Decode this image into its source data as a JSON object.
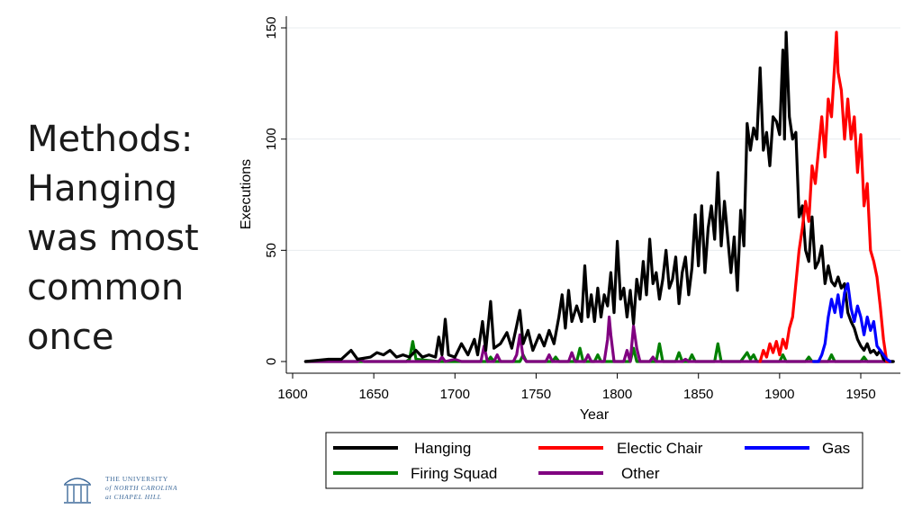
{
  "slide": {
    "title_lines": [
      "Methods:",
      "Hanging",
      "was most",
      "common",
      "once"
    ]
  },
  "logo": {
    "icon": "old-well-icon",
    "lines": [
      "THE UNIVERSITY",
      "of NORTH CAROLINA",
      "at CHAPEL HILL"
    ],
    "color": "#3e6a9a"
  },
  "chart_data": {
    "type": "line",
    "title": "",
    "xlabel": "Year",
    "ylabel": "Executions",
    "xlim": [
      1600,
      1975
    ],
    "ylim": [
      0,
      155
    ],
    "x_ticks": [
      1600,
      1650,
      1700,
      1750,
      1800,
      1850,
      1900,
      1950
    ],
    "y_ticks": [
      0,
      50,
      100,
      150
    ],
    "grid": true,
    "legend_position": "bottom",
    "series": [
      {
        "name": "Hanging",
        "color": "#000000",
        "points": [
          [
            1608,
            0
          ],
          [
            1622,
            1
          ],
          [
            1630,
            1
          ],
          [
            1636,
            5
          ],
          [
            1640,
            1
          ],
          [
            1648,
            2
          ],
          [
            1652,
            4
          ],
          [
            1656,
            3
          ],
          [
            1660,
            5
          ],
          [
            1664,
            2
          ],
          [
            1668,
            3
          ],
          [
            1672,
            2
          ],
          [
            1676,
            5
          ],
          [
            1680,
            2
          ],
          [
            1684,
            3
          ],
          [
            1688,
            2
          ],
          [
            1690,
            11
          ],
          [
            1692,
            3
          ],
          [
            1694,
            19
          ],
          [
            1696,
            3
          ],
          [
            1700,
            2
          ],
          [
            1704,
            8
          ],
          [
            1708,
            3
          ],
          [
            1712,
            10
          ],
          [
            1714,
            3
          ],
          [
            1717,
            18
          ],
          [
            1719,
            5
          ],
          [
            1722,
            27
          ],
          [
            1724,
            6
          ],
          [
            1728,
            8
          ],
          [
            1732,
            13
          ],
          [
            1735,
            6
          ],
          [
            1738,
            16
          ],
          [
            1740,
            23
          ],
          [
            1742,
            8
          ],
          [
            1745,
            14
          ],
          [
            1748,
            5
          ],
          [
            1752,
            12
          ],
          [
            1755,
            7
          ],
          [
            1758,
            14
          ],
          [
            1761,
            8
          ],
          [
            1764,
            20
          ],
          [
            1766,
            30
          ],
          [
            1768,
            15
          ],
          [
            1770,
            32
          ],
          [
            1772,
            18
          ],
          [
            1775,
            25
          ],
          [
            1778,
            18
          ],
          [
            1780,
            43
          ],
          [
            1782,
            20
          ],
          [
            1784,
            30
          ],
          [
            1786,
            18
          ],
          [
            1788,
            33
          ],
          [
            1790,
            20
          ],
          [
            1792,
            30
          ],
          [
            1794,
            25
          ],
          [
            1796,
            40
          ],
          [
            1798,
            22
          ],
          [
            1800,
            54
          ],
          [
            1802,
            28
          ],
          [
            1804,
            33
          ],
          [
            1806,
            20
          ],
          [
            1808,
            32
          ],
          [
            1810,
            17
          ],
          [
            1812,
            37
          ],
          [
            1814,
            28
          ],
          [
            1816,
            45
          ],
          [
            1818,
            30
          ],
          [
            1820,
            55
          ],
          [
            1822,
            35
          ],
          [
            1824,
            40
          ],
          [
            1826,
            28
          ],
          [
            1828,
            37
          ],
          [
            1830,
            50
          ],
          [
            1832,
            33
          ],
          [
            1834,
            37
          ],
          [
            1836,
            47
          ],
          [
            1838,
            26
          ],
          [
            1840,
            40
          ],
          [
            1842,
            47
          ],
          [
            1844,
            30
          ],
          [
            1846,
            42
          ],
          [
            1848,
            66
          ],
          [
            1850,
            43
          ],
          [
            1852,
            70
          ],
          [
            1854,
            40
          ],
          [
            1856,
            60
          ],
          [
            1858,
            70
          ],
          [
            1860,
            55
          ],
          [
            1862,
            85
          ],
          [
            1864,
            52
          ],
          [
            1866,
            72
          ],
          [
            1868,
            56
          ],
          [
            1870,
            40
          ],
          [
            1872,
            56
          ],
          [
            1874,
            32
          ],
          [
            1876,
            68
          ],
          [
            1878,
            52
          ],
          [
            1880,
            107
          ],
          [
            1882,
            95
          ],
          [
            1884,
            105
          ],
          [
            1886,
            100
          ],
          [
            1888,
            132
          ],
          [
            1890,
            95
          ],
          [
            1892,
            103
          ],
          [
            1894,
            88
          ],
          [
            1896,
            110
          ],
          [
            1898,
            108
          ],
          [
            1900,
            102
          ],
          [
            1902,
            140
          ],
          [
            1903,
            100
          ],
          [
            1904,
            148
          ],
          [
            1906,
            110
          ],
          [
            1908,
            100
          ],
          [
            1910,
            103
          ],
          [
            1912,
            65
          ],
          [
            1914,
            70
          ],
          [
            1916,
            50
          ],
          [
            1918,
            45
          ],
          [
            1920,
            65
          ],
          [
            1922,
            42
          ],
          [
            1924,
            45
          ],
          [
            1926,
            52
          ],
          [
            1928,
            35
          ],
          [
            1930,
            43
          ],
          [
            1932,
            36
          ],
          [
            1934,
            34
          ],
          [
            1936,
            38
          ],
          [
            1938,
            33
          ],
          [
            1940,
            35
          ],
          [
            1942,
            22
          ],
          [
            1944,
            18
          ],
          [
            1946,
            15
          ],
          [
            1948,
            10
          ],
          [
            1950,
            7
          ],
          [
            1952,
            5
          ],
          [
            1954,
            8
          ],
          [
            1956,
            4
          ],
          [
            1958,
            5
          ],
          [
            1960,
            3
          ],
          [
            1962,
            5
          ],
          [
            1964,
            1
          ],
          [
            1966,
            0
          ],
          [
            1970,
            0
          ]
        ]
      },
      {
        "name": "Electic Chair",
        "color": "#ff0000",
        "points": [
          [
            1888,
            0
          ],
          [
            1890,
            5
          ],
          [
            1892,
            2
          ],
          [
            1894,
            8
          ],
          [
            1896,
            4
          ],
          [
            1898,
            9
          ],
          [
            1900,
            3
          ],
          [
            1902,
            10
          ],
          [
            1904,
            6
          ],
          [
            1906,
            15
          ],
          [
            1908,
            20
          ],
          [
            1910,
            35
          ],
          [
            1912,
            50
          ],
          [
            1914,
            60
          ],
          [
            1916,
            72
          ],
          [
            1918,
            63
          ],
          [
            1920,
            88
          ],
          [
            1922,
            80
          ],
          [
            1924,
            95
          ],
          [
            1926,
            110
          ],
          [
            1928,
            92
          ],
          [
            1930,
            118
          ],
          [
            1932,
            110
          ],
          [
            1934,
            135
          ],
          [
            1935,
            148
          ],
          [
            1936,
            130
          ],
          [
            1938,
            122
          ],
          [
            1940,
            100
          ],
          [
            1942,
            118
          ],
          [
            1944,
            100
          ],
          [
            1946,
            110
          ],
          [
            1948,
            85
          ],
          [
            1950,
            102
          ],
          [
            1952,
            70
          ],
          [
            1954,
            80
          ],
          [
            1956,
            50
          ],
          [
            1958,
            45
          ],
          [
            1960,
            38
          ],
          [
            1962,
            25
          ],
          [
            1964,
            10
          ],
          [
            1966,
            0
          ],
          [
            1968,
            0
          ]
        ]
      },
      {
        "name": "Gas",
        "color": "#0000ff",
        "points": [
          [
            1921,
            0
          ],
          [
            1924,
            0
          ],
          [
            1926,
            3
          ],
          [
            1928,
            8
          ],
          [
            1930,
            20
          ],
          [
            1932,
            28
          ],
          [
            1934,
            22
          ],
          [
            1936,
            30
          ],
          [
            1938,
            20
          ],
          [
            1940,
            31
          ],
          [
            1942,
            35
          ],
          [
            1944,
            24
          ],
          [
            1946,
            18
          ],
          [
            1948,
            25
          ],
          [
            1950,
            20
          ],
          [
            1952,
            12
          ],
          [
            1954,
            20
          ],
          [
            1956,
            14
          ],
          [
            1958,
            18
          ],
          [
            1960,
            7
          ],
          [
            1962,
            5
          ],
          [
            1964,
            3
          ],
          [
            1966,
            1
          ],
          [
            1968,
            0
          ]
        ]
      },
      {
        "name": "Firing Squad",
        "color": "#008000",
        "points": [
          [
            1608,
            0
          ],
          [
            1670,
            0
          ],
          [
            1672,
            1
          ],
          [
            1674,
            9
          ],
          [
            1676,
            1
          ],
          [
            1690,
            0
          ],
          [
            1720,
            0
          ],
          [
            1722,
            2
          ],
          [
            1724,
            0
          ],
          [
            1740,
            0
          ],
          [
            1742,
            3
          ],
          [
            1744,
            0
          ],
          [
            1760,
            0
          ],
          [
            1762,
            2
          ],
          [
            1764,
            0
          ],
          [
            1775,
            0
          ],
          [
            1777,
            6
          ],
          [
            1779,
            0
          ],
          [
            1786,
            0
          ],
          [
            1788,
            3
          ],
          [
            1790,
            0
          ],
          [
            1808,
            0
          ],
          [
            1810,
            6
          ],
          [
            1812,
            0
          ],
          [
            1824,
            0
          ],
          [
            1826,
            8
          ],
          [
            1828,
            0
          ],
          [
            1836,
            0
          ],
          [
            1838,
            4
          ],
          [
            1840,
            0
          ],
          [
            1844,
            0
          ],
          [
            1846,
            3
          ],
          [
            1848,
            0
          ],
          [
            1860,
            0
          ],
          [
            1862,
            8
          ],
          [
            1864,
            0
          ],
          [
            1876,
            0
          ],
          [
            1878,
            2
          ],
          [
            1880,
            4
          ],
          [
            1882,
            1
          ],
          [
            1884,
            3
          ],
          [
            1886,
            0
          ],
          [
            1900,
            0
          ],
          [
            1902,
            3
          ],
          [
            1904,
            0
          ],
          [
            1916,
            0
          ],
          [
            1918,
            2
          ],
          [
            1920,
            0
          ],
          [
            1930,
            0
          ],
          [
            1932,
            3
          ],
          [
            1934,
            0
          ],
          [
            1950,
            0
          ],
          [
            1952,
            2
          ],
          [
            1954,
            0
          ],
          [
            1970,
            0
          ]
        ]
      },
      {
        "name": "Other",
        "color": "#800080",
        "points": [
          [
            1608,
            0
          ],
          [
            1640,
            0
          ],
          [
            1642,
            1
          ],
          [
            1644,
            0
          ],
          [
            1690,
            0
          ],
          [
            1692,
            2
          ],
          [
            1694,
            0
          ],
          [
            1700,
            1
          ],
          [
            1704,
            0
          ],
          [
            1716,
            0
          ],
          [
            1718,
            7
          ],
          [
            1720,
            0
          ],
          [
            1724,
            0
          ],
          [
            1726,
            3
          ],
          [
            1728,
            0
          ],
          [
            1736,
            0
          ],
          [
            1738,
            3
          ],
          [
            1740,
            12
          ],
          [
            1742,
            2
          ],
          [
            1744,
            0
          ],
          [
            1756,
            0
          ],
          [
            1758,
            3
          ],
          [
            1760,
            0
          ],
          [
            1770,
            0
          ],
          [
            1772,
            4
          ],
          [
            1774,
            0
          ],
          [
            1780,
            0
          ],
          [
            1782,
            3
          ],
          [
            1784,
            0
          ],
          [
            1792,
            0
          ],
          [
            1794,
            10
          ],
          [
            1795,
            20
          ],
          [
            1796,
            12
          ],
          [
            1798,
            0
          ],
          [
            1804,
            0
          ],
          [
            1806,
            5
          ],
          [
            1808,
            0
          ],
          [
            1810,
            16
          ],
          [
            1812,
            6
          ],
          [
            1814,
            0
          ],
          [
            1820,
            0
          ],
          [
            1822,
            2
          ],
          [
            1824,
            0
          ],
          [
            1840,
            0
          ],
          [
            1842,
            1
          ],
          [
            1844,
            0
          ],
          [
            1970,
            0
          ]
        ]
      }
    ]
  }
}
